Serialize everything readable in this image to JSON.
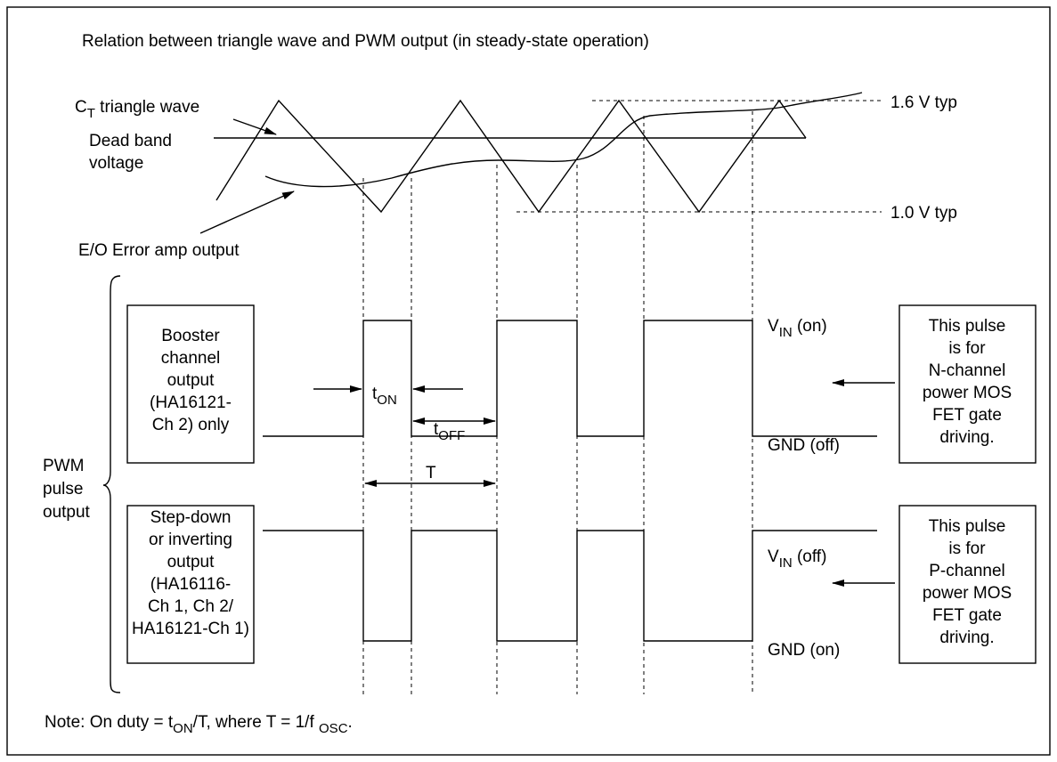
{
  "title": "Relation between triangle wave and PWM output (in steady-state operation)",
  "triangle_label": {
    "main": "C",
    "sub": "T",
    "rest": " triangle wave"
  },
  "dead_band_label": [
    "Dead band",
    "voltage"
  ],
  "error_amp_label": "E/O  Error amp output",
  "level_high": "1.6 V typ",
  "level_low": "1.0 V typ",
  "pwm_label": [
    "PWM",
    "pulse",
    "output"
  ],
  "booster_box": [
    "Booster",
    "channel",
    "output",
    "(HA16121-",
    "Ch 2) only"
  ],
  "stepdown_box": [
    "Step-down",
    "or inverting",
    "output",
    "(HA16116-",
    "Ch 1, Ch 2/",
    "HA16121-Ch 1)"
  ],
  "n_channel_box": [
    "This pulse",
    "is for",
    "N-channel",
    "power MOS",
    "FET gate",
    "driving."
  ],
  "p_channel_box": [
    "This pulse",
    "is for",
    "P-channel",
    "power MOS",
    "FET gate",
    "driving."
  ],
  "vin_on": {
    "main": "V",
    "sub": "IN",
    "rest": " (on)"
  },
  "gnd_off": "GND (off)",
  "vin_off": {
    "main": "V",
    "sub": "IN",
    "rest": " (off)"
  },
  "gnd_on": "GND (on)",
  "t_on": {
    "main": "t",
    "sub": "ON"
  },
  "t_off": {
    "main": "t",
    "sub": "OFF"
  },
  "period": "T",
  "note": {
    "pre": "Note:  On duty = t",
    "sub": "ON",
    "mid": "/T, where T = 1/f ",
    "sub2": "OSC",
    "post": "."
  }
}
